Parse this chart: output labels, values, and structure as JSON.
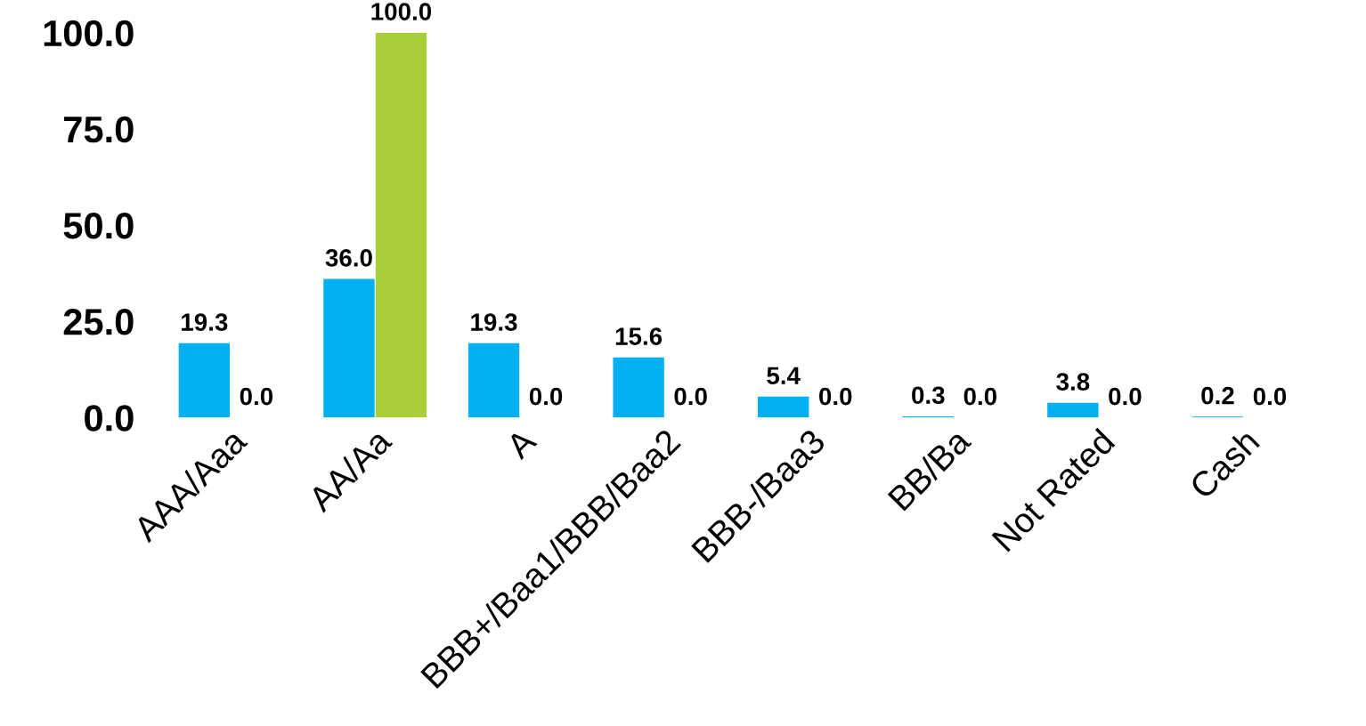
{
  "chart_data": {
    "type": "bar",
    "categories": [
      "AAA/Aaa",
      "AA/Aa",
      "A",
      "BBB+/Baa1/BBB/Baa2",
      "BBB-/Baa3",
      "BB/Ba",
      "Not Rated",
      "Cash"
    ],
    "series": [
      {
        "color": "#00b0f0",
        "values": [
          19.3,
          36.0,
          19.3,
          15.6,
          5.4,
          0.3,
          3.8,
          0.2
        ],
        "value_labels": [
          "19.3",
          "36.0",
          "19.3",
          "15.6",
          "5.4",
          "0.3",
          "3.8",
          "0.2"
        ]
      },
      {
        "color": "#a8cf38",
        "values": [
          0.0,
          100.0,
          0.0,
          0.0,
          0.0,
          0.0,
          0.0,
          0.0
        ],
        "value_labels": [
          "0.0",
          "100.0",
          "0.0",
          "0.0",
          "0.0",
          "0.0",
          "0.0",
          "0.0"
        ]
      }
    ],
    "ylim": [
      0,
      100
    ],
    "yticks": [
      {
        "value": 0,
        "label": "0.0"
      },
      {
        "value": 25,
        "label": "25.0"
      },
      {
        "value": 50,
        "label": "50.0"
      },
      {
        "value": 75,
        "label": "75.0"
      },
      {
        "value": 100,
        "label": "100.0"
      }
    ],
    "grid": false
  }
}
